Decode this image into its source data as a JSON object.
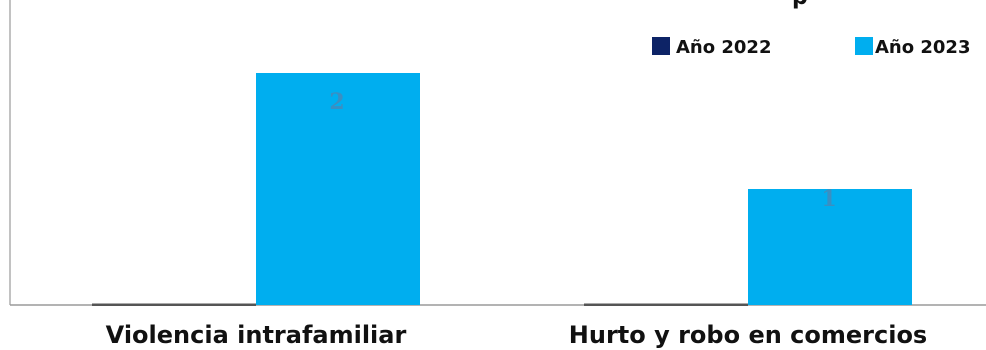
{
  "chart_data": {
    "type": "bar",
    "title_fragment": "p",
    "categories": [
      "Violencia intrafamiliar",
      "Hurto y robo en comercios"
    ],
    "series": [
      {
        "name": "Año 2022",
        "values": [
          0,
          0
        ],
        "color": "#0d2366"
      },
      {
        "name": "Año 2023",
        "values": [
          2,
          1
        ],
        "color": "#00aeef"
      }
    ],
    "data_labels": [
      "2",
      "1"
    ],
    "data_label_color": "#3a8fc2",
    "ylim": [
      0,
      2.5
    ],
    "grid": false,
    "legend_position": "top-right"
  }
}
